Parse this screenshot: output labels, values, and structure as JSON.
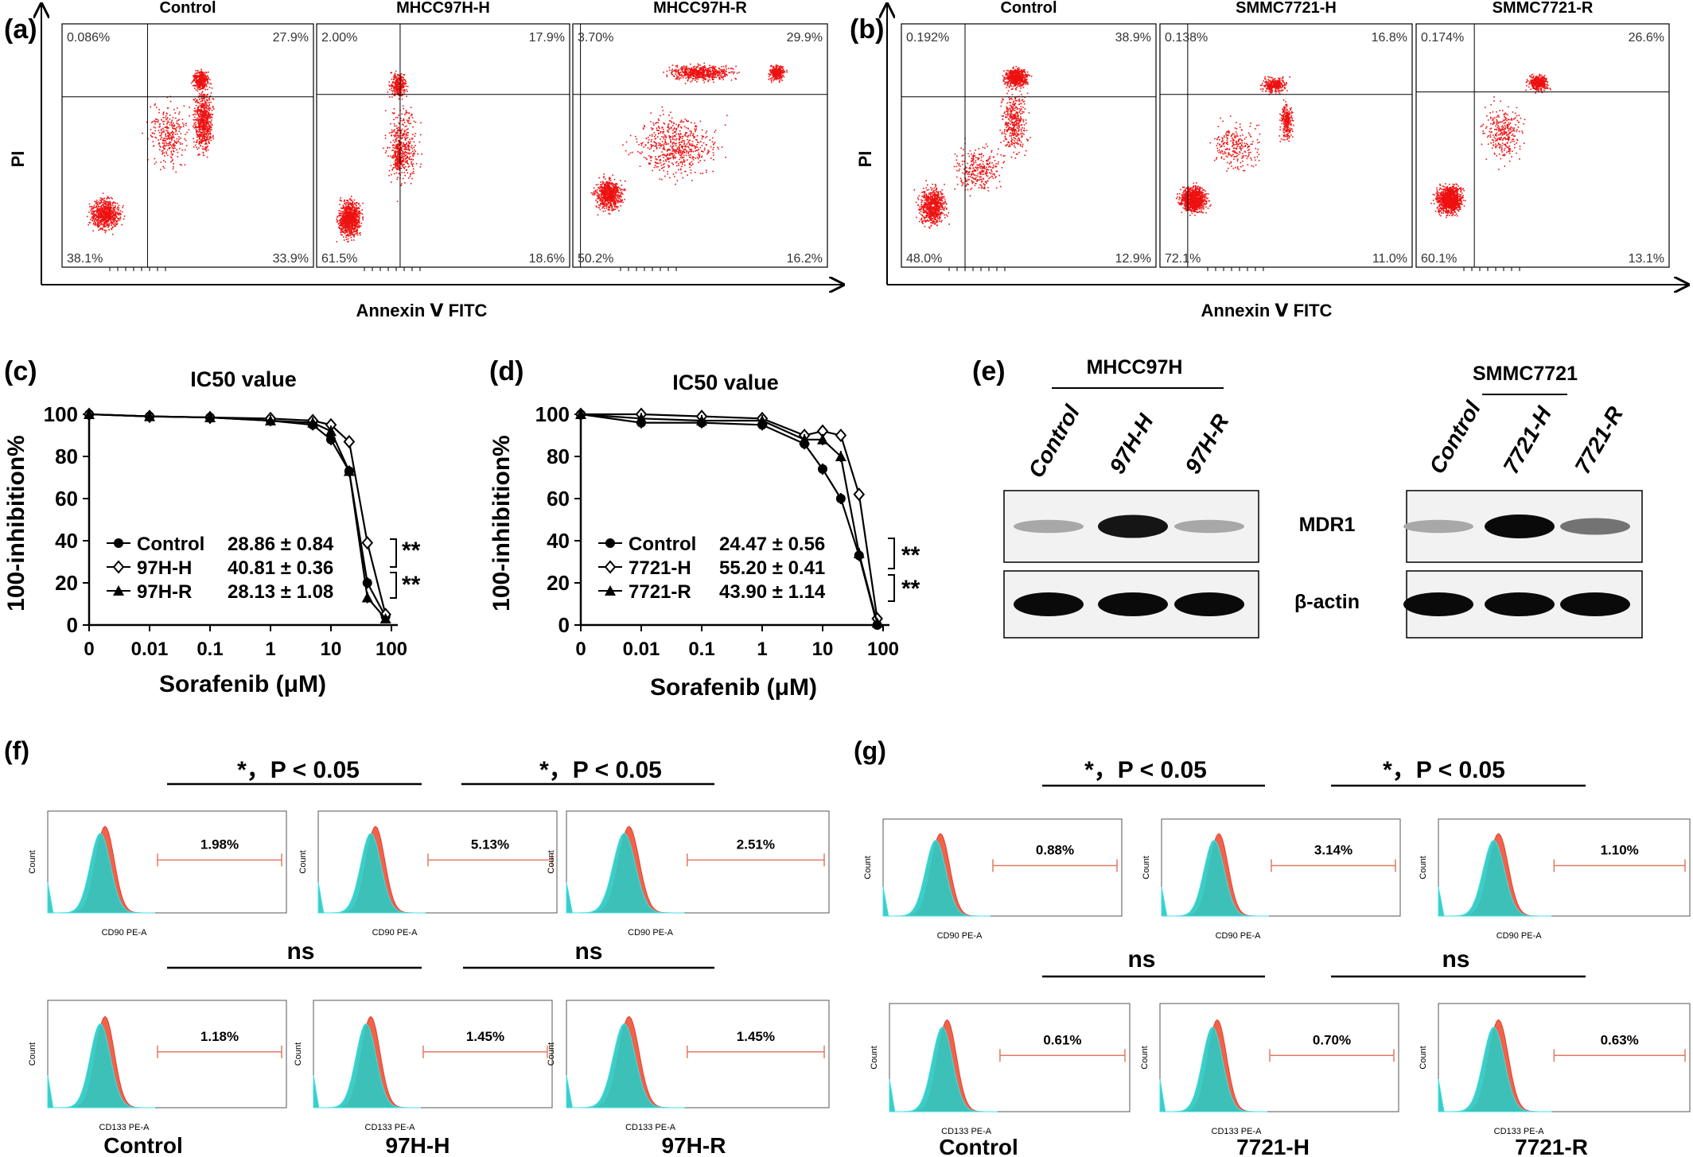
{
  "figure": {
    "panel_a": {
      "label": "(a)",
      "x_axis_label": "Annexin Ⅴ FITC",
      "y_axis_label": "PI",
      "plots": [
        {
          "title": "Control",
          "q_ul": "0.086%",
          "q_ur": "27.9%",
          "q_ll": "38.1%",
          "q_lr": "33.9%"
        },
        {
          "title": "MHCC97H-H",
          "q_ul": "2.00%",
          "q_ur": "17.9%",
          "q_ll": "61.5%",
          "q_lr": "18.6%"
        },
        {
          "title": "MHCC97H-R",
          "q_ul": "3.70%",
          "q_ur": "29.9%",
          "q_ll": "50.2%",
          "q_lr": "16.2%"
        }
      ]
    },
    "panel_b": {
      "label": "(b)",
      "x_axis_label": "Annexin Ⅴ FITC",
      "y_axis_label": "PI",
      "plots": [
        {
          "title": "Control",
          "q_ul": "0.192%",
          "q_ur": "38.9%",
          "q_ll": "48.0%",
          "q_lr": "12.9%"
        },
        {
          "title": "SMMC7721-H",
          "q_ul": "0.138%",
          "q_ur": "16.8%",
          "q_ll": "72.1%",
          "q_lr": "11.0%"
        },
        {
          "title": "SMMC7721-R",
          "q_ul": "0.174%",
          "q_ur": "26.6%",
          "q_ll": "60.1%",
          "q_lr": "13.1%"
        }
      ]
    },
    "panel_c": {
      "label": "(c)",
      "title": "IC50 value",
      "y_axis_label": "100-inhibition%",
      "x_axis_label": "Sorafenib (μM)",
      "sig1": "**",
      "sig2": "**",
      "legend": [
        {
          "name": "Control",
          "value": "28.86 ± 0.84",
          "marker": "filled-circle"
        },
        {
          "name": "97H-H",
          "value": "40.81 ± 0.36",
          "marker": "open-diamond"
        },
        {
          "name": "97H-R",
          "value": "28.13 ± 1.08",
          "marker": "filled-triangle"
        }
      ]
    },
    "panel_d": {
      "label": "(d)",
      "title": "IC50 value",
      "y_axis_label": "100-inhibition%",
      "x_axis_label": "Sorafenib (μM)",
      "sig1": "**",
      "sig2": "**",
      "legend": [
        {
          "name": "Control",
          "value": "24.47 ± 0.56",
          "marker": "filled-circle"
        },
        {
          "name": "7721-H",
          "value": "55.20 ± 0.41",
          "marker": "open-diamond"
        },
        {
          "name": "7721-R",
          "value": "43.90 ± 1.14",
          "marker": "filled-triangle"
        }
      ]
    },
    "panel_e": {
      "label": "(e)",
      "group1": "MHCC97H",
      "group2": "SMMC7721",
      "lanes1": [
        "Control",
        "97H-H",
        "97H-R"
      ],
      "lanes2": [
        "Control",
        "7721-H",
        "7721-R"
      ],
      "row1": "MDR1",
      "row2": "β-actin"
    },
    "panel_f": {
      "label": "(f)",
      "sig_top_left": "*，P < 0.05",
      "sig_top_right": "*，P < 0.05",
      "sig_bot_left": "ns",
      "sig_bot_right": "ns",
      "top_xlabel": "CD90 PE-A",
      "bot_xlabel": "CD133 PE-A",
      "ylabel": "Count",
      "top_pcts": [
        "1.98%",
        "5.13%",
        "2.51%"
      ],
      "bot_pcts": [
        "1.18%",
        "1.45%",
        "1.45%"
      ],
      "columns": [
        "Control",
        "97H-H",
        "97H-R"
      ]
    },
    "panel_g": {
      "label": "(g)",
      "sig_top_left": "*，P < 0.05",
      "sig_top_right": "*，P < 0.05",
      "sig_bot_left": "ns",
      "sig_bot_right": "ns",
      "top_xlabel": "CD90 PE-A",
      "bot_xlabel": "CD133 PE-A",
      "ylabel": "Count",
      "top_pcts": [
        "0.88%",
        "3.14%",
        "1.10%"
      ],
      "bot_pcts": [
        "0.61%",
        "0.70%",
        "0.63%"
      ],
      "columns": [
        "Control",
        "7721-H",
        "7721-R"
      ]
    }
  },
  "chart_data": [
    {
      "type": "line",
      "panel": "(c)",
      "title": "IC50 value",
      "xlabel": "Sorafenib (μM)",
      "ylabel": "100-inhibition%",
      "x_ticks": [
        "0",
        "0.01",
        "0.1",
        "1",
        "10",
        "100"
      ],
      "y_ticks": [
        0,
        20,
        40,
        60,
        80,
        100
      ],
      "ylim": [
        0,
        100
      ],
      "x": [
        0,
        0.01,
        0.1,
        1,
        5,
        10,
        20,
        40,
        80
      ],
      "series": [
        {
          "name": "Control",
          "values": [
            100,
            99,
            98.5,
            97,
            95,
            88,
            73,
            20,
            4
          ]
        },
        {
          "name": "97H-H",
          "values": [
            100,
            99,
            98.5,
            98,
            97,
            95,
            87,
            39,
            5
          ]
        },
        {
          "name": "97H-R",
          "values": [
            100,
            99,
            98.5,
            97,
            96,
            92,
            73,
            13,
            3
          ]
        }
      ]
    },
    {
      "type": "line",
      "panel": "(d)",
      "title": "IC50 value",
      "xlabel": "Sorafenib (μM)",
      "ylabel": "100-inhibition%",
      "x_ticks": [
        "0",
        "0.01",
        "0.1",
        "1",
        "10",
        "100"
      ],
      "y_ticks": [
        0,
        20,
        40,
        60,
        80,
        100
      ],
      "ylim": [
        0,
        100
      ],
      "x": [
        0,
        0.01,
        0.1,
        1,
        5,
        10,
        20,
        40,
        80
      ],
      "series": [
        {
          "name": "Control",
          "values": [
            100,
            96,
            96,
            95,
            86,
            74,
            60,
            33,
            0
          ]
        },
        {
          "name": "7721-H",
          "values": [
            100,
            100,
            99,
            98,
            90,
            92,
            90,
            62,
            3
          ]
        },
        {
          "name": "7721-R",
          "values": [
            100,
            98,
            97,
            97,
            88,
            88,
            80,
            34,
            1
          ]
        }
      ]
    }
  ]
}
